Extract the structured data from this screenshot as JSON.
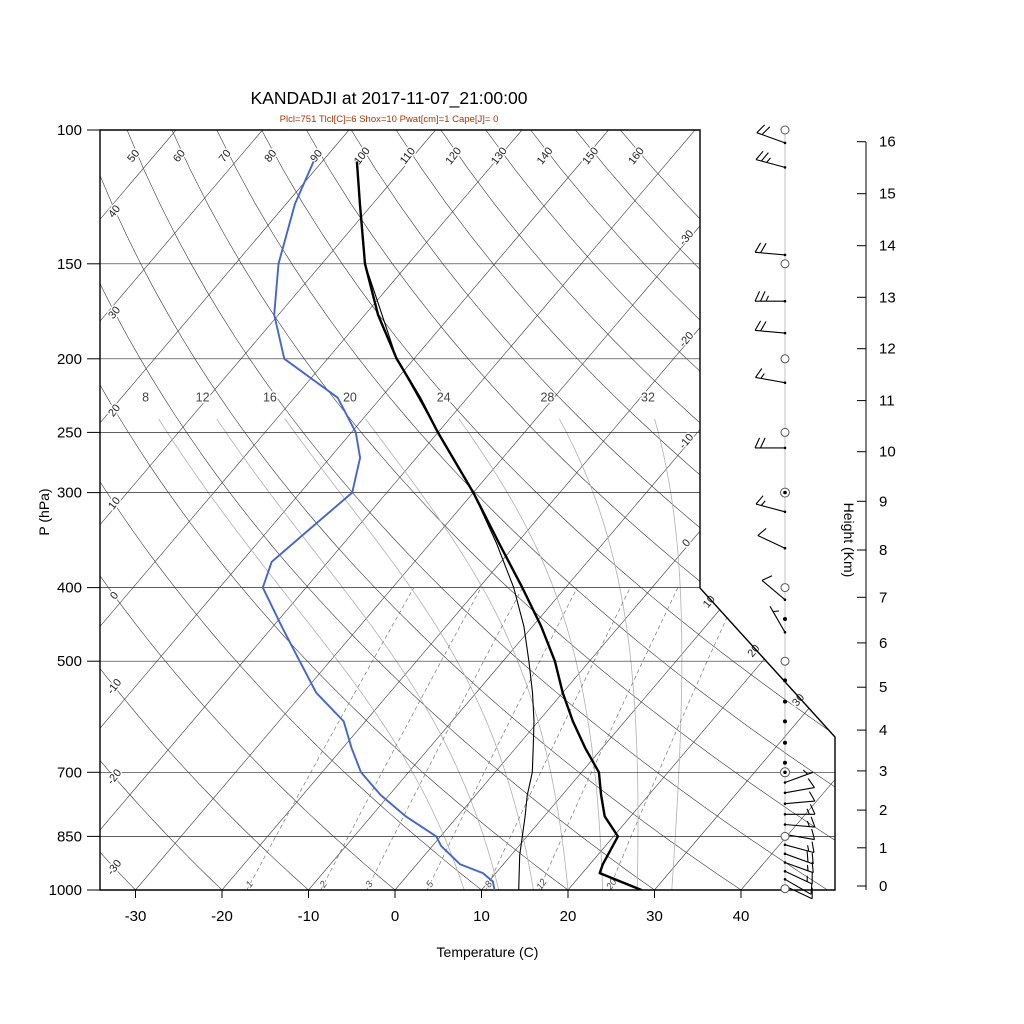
{
  "chart_data": {
    "type": "skewt-log-p-sounding",
    "title": "KANDADJI at 2017-11-07_21:00:00",
    "subtitle": "Plcl=751 Tlcl[C]=6 Shox=10 Pwat[cm]=1 Cape[J]= 0",
    "station": "KANDADJI",
    "datetime": "2017-11-07_21:00:00",
    "indices": {
      "Plcl": 751,
      "Tlcl_C": 6,
      "Shox": 10,
      "Pwat_cm": 1,
      "Cape_J": 0
    },
    "axes": {
      "pressure_label": "P (hPa)",
      "temperature_label": "Temperature (C)",
      "height_label": "Height (Km)",
      "pressure_ticks": [
        100,
        150,
        200,
        250,
        300,
        400,
        500,
        700,
        850,
        1000
      ],
      "temperature_ticks": [
        -30,
        -20,
        -10,
        0,
        10,
        20,
        30,
        40
      ],
      "height_ticks_km": [
        0,
        1,
        2,
        3,
        4,
        5,
        6,
        7,
        8,
        9,
        10,
        11,
        12,
        13,
        14,
        15,
        16
      ],
      "height_tick_pressures": [
        988,
        880,
        785,
        697,
        616,
        541,
        473,
        412,
        357,
        308,
        265,
        227,
        194,
        166,
        142,
        121.3,
        103.6
      ],
      "pressure_range": [
        100,
        1000
      ],
      "temperature_range_at_1000hPa": [
        -30,
        40
      ]
    },
    "grid": {
      "isotherms": [
        -100,
        -90,
        -80,
        -70,
        -60,
        -50,
        -40,
        -30,
        -20,
        -10,
        0,
        10,
        20,
        30,
        40
      ],
      "isotherm_edge_labels": [
        -30,
        -20,
        -10,
        0,
        10,
        20,
        30
      ],
      "dry_adiabats_theta_C": [
        -30,
        -20,
        -10,
        0,
        10,
        20,
        30,
        40,
        50,
        60,
        70,
        80,
        90,
        100,
        110,
        120,
        130,
        140,
        150,
        160
      ],
      "moist_adiabats_thetaw_C": [
        8,
        12,
        16,
        20,
        24,
        28,
        32
      ],
      "mixing_ratio_g_kg": [
        1,
        2,
        3,
        5,
        8,
        12,
        20
      ]
    },
    "sounding": {
      "temperature_C": [
        [
          1000,
          28.5
        ],
        [
          950,
          22
        ],
        [
          925,
          21.5
        ],
        [
          850,
          20.5
        ],
        [
          800,
          17
        ],
        [
          750,
          14.5
        ],
        [
          700,
          12
        ],
        [
          650,
          8
        ],
        [
          600,
          4
        ],
        [
          550,
          0
        ],
        [
          500,
          -4
        ],
        [
          450,
          -9
        ],
        [
          400,
          -15
        ],
        [
          350,
          -22
        ],
        [
          300,
          -30
        ],
        [
          250,
          -40
        ],
        [
          225,
          -45.5
        ],
        [
          200,
          -52
        ],
        [
          175,
          -58.5
        ],
        [
          150,
          -65
        ],
        [
          125,
          -71.5
        ],
        [
          110,
          -76
        ]
      ],
      "dewpoint_C": [
        [
          1000,
          11.5
        ],
        [
          975,
          10.5
        ],
        [
          950,
          8.5
        ],
        [
          925,
          5
        ],
        [
          875,
          1
        ],
        [
          850,
          -0.5
        ],
        [
          800,
          -6
        ],
        [
          750,
          -11
        ],
        [
          700,
          -15.5
        ],
        [
          650,
          -19
        ],
        [
          600,
          -22.5
        ],
        [
          550,
          -28.5
        ],
        [
          500,
          -33.5
        ],
        [
          450,
          -39
        ],
        [
          400,
          -45
        ],
        [
          370,
          -46.5
        ],
        [
          340,
          -45.5
        ],
        [
          300,
          -44
        ],
        [
          270,
          -46.5
        ],
        [
          250,
          -49.5
        ],
        [
          225,
          -55
        ],
        [
          200,
          -65
        ],
        [
          175,
          -70.5
        ],
        [
          150,
          -75
        ],
        [
          125,
          -79
        ],
        [
          110,
          -81
        ]
      ],
      "parcel_C": [
        [
          1000,
          14.3
        ],
        [
          900,
          11
        ],
        [
          800,
          7.8
        ],
        [
          751,
          6
        ],
        [
          700,
          4.3
        ],
        [
          650,
          2
        ],
        [
          600,
          -0.5
        ],
        [
          550,
          -3.5
        ],
        [
          500,
          -7
        ],
        [
          450,
          -11
        ],
        [
          400,
          -16
        ],
        [
          350,
          -22.3
        ],
        [
          300,
          -30
        ],
        [
          250,
          -40
        ],
        [
          200,
          -52
        ],
        [
          150,
          -65
        ],
        [
          110,
          -76
        ]
      ]
    },
    "wind_barbs": [
      {
        "p": 100,
        "symbol": "circle"
      },
      {
        "p": 104,
        "speed_kt": 20,
        "dir_deg": 290
      },
      {
        "p": 112,
        "speed_kt": 25,
        "dir_deg": 285
      },
      {
        "p": 146,
        "speed_kt": 20,
        "dir_deg": 275
      },
      {
        "p": 150,
        "symbol": "circle"
      },
      {
        "p": 168,
        "speed_kt": 25,
        "dir_deg": 270
      },
      {
        "p": 185,
        "speed_kt": 20,
        "dir_deg": 275
      },
      {
        "p": 200,
        "symbol": "circle"
      },
      {
        "p": 215,
        "speed_kt": 15,
        "dir_deg": 280
      },
      {
        "p": 250,
        "symbol": "circle"
      },
      {
        "p": 262,
        "speed_kt": 20,
        "dir_deg": 270
      },
      {
        "p": 300,
        "symbol": "circledot"
      },
      {
        "p": 318,
        "speed_kt": 15,
        "dir_deg": 285
      },
      {
        "p": 355,
        "speed_kt": 10,
        "dir_deg": 295
      },
      {
        "p": 400,
        "symbol": "circle"
      },
      {
        "p": 415,
        "speed_kt": 10,
        "dir_deg": 310
      },
      {
        "p": 440,
        "symbol": "dot"
      },
      {
        "p": 458,
        "speed_kt": 5,
        "dir_deg": 330
      },
      {
        "p": 500,
        "symbol": "circle"
      },
      {
        "p": 530,
        "symbol": "dot"
      },
      {
        "p": 565,
        "symbol": "dot"
      },
      {
        "p": 600,
        "symbol": "dot"
      },
      {
        "p": 640,
        "symbol": "dot"
      },
      {
        "p": 680,
        "symbol": "dot"
      },
      {
        "p": 700,
        "symbol": "circledot"
      },
      {
        "p": 722,
        "speed_kt": 5,
        "dir_deg": 70
      },
      {
        "p": 745,
        "speed_kt": 10,
        "dir_deg": 80
      },
      {
        "p": 770,
        "speed_kt": 10,
        "dir_deg": 85
      },
      {
        "p": 795,
        "speed_kt": 15,
        "dir_deg": 90
      },
      {
        "p": 820,
        "speed_kt": 15,
        "dir_deg": 95
      },
      {
        "p": 845,
        "speed_kt": 10,
        "dir_deg": 100
      },
      {
        "p": 850,
        "symbol": "circle"
      },
      {
        "p": 872,
        "speed_kt": 15,
        "dir_deg": 105
      },
      {
        "p": 896,
        "speed_kt": 20,
        "dir_deg": 110
      },
      {
        "p": 920,
        "speed_kt": 15,
        "dir_deg": 110
      },
      {
        "p": 945,
        "speed_kt": 15,
        "dir_deg": 115
      },
      {
        "p": 968,
        "speed_kt": 10,
        "dir_deg": 120
      },
      {
        "p": 988,
        "speed_kt": 10,
        "dir_deg": 115
      },
      {
        "p": 996,
        "symbol": "circle"
      }
    ],
    "colors": {
      "temperature": "#000000",
      "dewpoint": "#4367c8",
      "parcel": "#000000",
      "subtitle": "#a63603",
      "grid": "#3a3a3a",
      "pressure_line": "#2a2a2a",
      "moist_adiabat": "#b0b0b0",
      "mixing_ratio": "#777777",
      "barb": "#000000"
    }
  }
}
